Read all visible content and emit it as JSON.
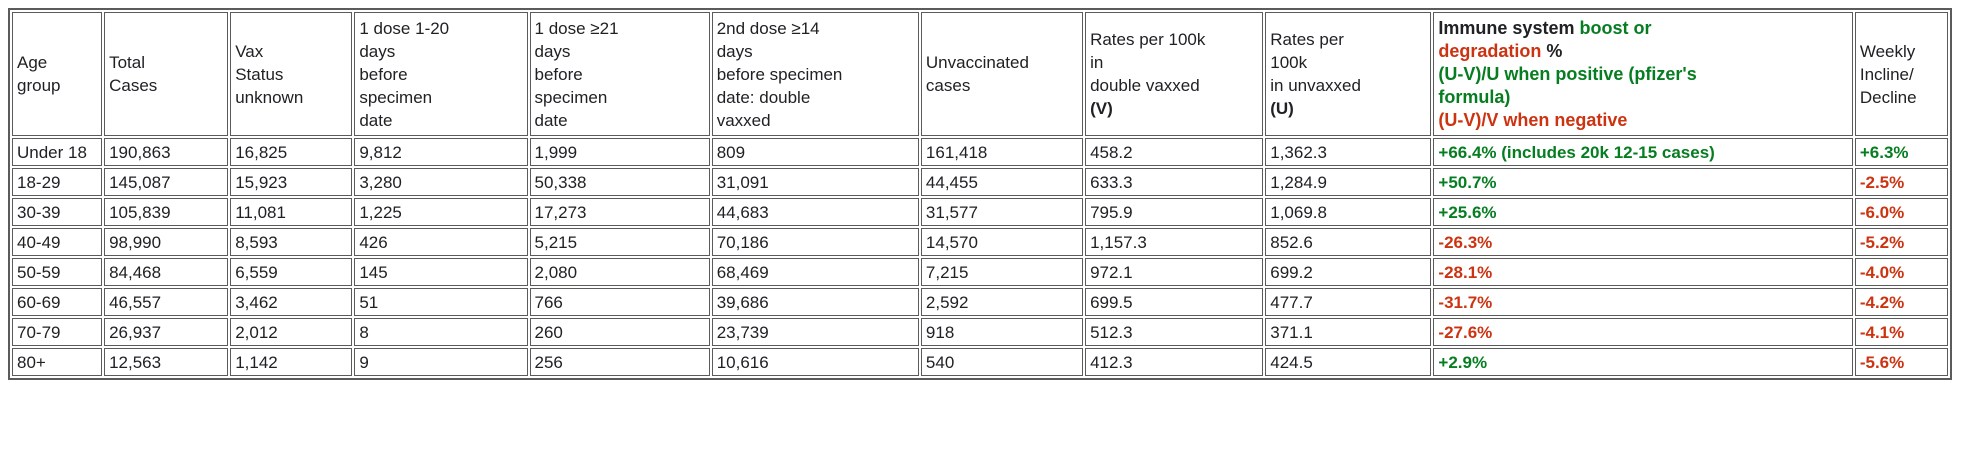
{
  "colors": {
    "green": "#077d21",
    "red": "#cc3311",
    "text": "#202124",
    "border": "#5b5b5b"
  },
  "chart_data": {
    "type": "table",
    "columns": [
      "Age group",
      "Total Cases",
      "Vax Status unknown",
      "1 dose 1-20 days before specimen date",
      "1 dose ≥21 days before specimen date",
      "2nd dose ≥14 days before specimen date: double vaxxed",
      "Unvaccinated cases",
      "Rates per 100k in double vaxxed (V)",
      "Rates per 100k in unvaxxed (U)",
      "Immune system boost or degradation % (U-V)/U when positive (pfizer's formula) (U-V)/V when negative",
      "Weekly Incline/Decline"
    ],
    "rows": [
      [
        "Under 18",
        "190,863",
        "16,825",
        "9,812",
        "1,999",
        "809",
        "161,418",
        "458.2",
        "1,362.3",
        "+66.4% (includes 20k 12-15 cases)",
        "+6.3%"
      ],
      [
        "18-29",
        "145,087",
        "15,923",
        "3,280",
        "50,338",
        "31,091",
        "44,455",
        "633.3",
        "1,284.9",
        "+50.7%",
        "-2.5%"
      ],
      [
        "30-39",
        "105,839",
        "11,081",
        "1,225",
        "17,273",
        "44,683",
        "31,577",
        "795.9",
        "1,069.8",
        "+25.6%",
        "-6.0%"
      ],
      [
        "40-49",
        "98,990",
        "8,593",
        "426",
        "5,215",
        "70,186",
        "14,570",
        "1,157.3",
        "852.6",
        "-26.3%",
        "-5.2%"
      ],
      [
        "50-59",
        "84,468",
        "6,559",
        "145",
        "2,080",
        "68,469",
        "7,215",
        "972.1",
        "699.2",
        "-28.1%",
        "-4.0%"
      ],
      [
        "60-69",
        "46,557",
        "3,462",
        "51",
        "766",
        "39,686",
        "2,592",
        "699.5",
        "477.7",
        "-31.7%",
        "-4.2%"
      ],
      [
        "70-79",
        "26,937",
        "2,012",
        "8",
        "260",
        "23,739",
        "918",
        "512.3",
        "371.1",
        "-27.6%",
        "-4.1%"
      ],
      [
        "80+",
        "12,563",
        "1,142",
        "9",
        "256",
        "10,616",
        "540",
        "412.3",
        "424.5",
        "+2.9%",
        "-5.6%"
      ]
    ]
  },
  "cell_colors": {
    "immune": [
      "green",
      "green",
      "green",
      "red",
      "red",
      "red",
      "red",
      "green"
    ],
    "weekly": [
      "green",
      "red",
      "red",
      "red",
      "red",
      "red",
      "red",
      "red"
    ]
  },
  "header_display": [
    {
      "name": "age-group",
      "segments": [
        {
          "text": "Age\ngroup"
        }
      ]
    },
    {
      "name": "total-cases",
      "segments": [
        {
          "text": "Total\nCases"
        }
      ]
    },
    {
      "name": "vax-status-unknown",
      "segments": [
        {
          "text": "Vax\nStatus\nunknown"
        }
      ]
    },
    {
      "name": "dose1-1-20-days",
      "segments": [
        {
          "text": "1 dose 1-20\ndays\nbefore\nspecimen\ndate"
        }
      ]
    },
    {
      "name": "dose1-ge21-days",
      "segments": [
        {
          "text": "1 dose ≥21\ndays\nbefore\nspecimen\ndate"
        }
      ]
    },
    {
      "name": "dose2-ge14-days",
      "segments": [
        {
          "text": "2nd dose ≥14\ndays\nbefore specimen\ndate: double\nvaxxed"
        }
      ]
    },
    {
      "name": "unvaccinated-cases",
      "segments": [
        {
          "text": "Unvaccinated\ncases"
        }
      ]
    },
    {
      "name": "rates-double-vaxxed",
      "segments": [
        {
          "text": "Rates per 100k\nin\ndouble vaxxed\n"
        },
        {
          "text": "(V)",
          "bold": true
        }
      ]
    },
    {
      "name": "rates-unvaxxed",
      "segments": [
        {
          "text": "Rates per\n100k\nin unvaxxed\n"
        },
        {
          "text": "(U)",
          "bold": true
        }
      ]
    },
    {
      "name": "immune-boost-degradation",
      "bold": true,
      "segments": [
        {
          "text": "Immune system "
        },
        {
          "text": "boost or",
          "color": "green"
        },
        {
          "text": "\n"
        },
        {
          "text": "degradation",
          "color": "red"
        },
        {
          "text": " %"
        },
        {
          "text": "\n"
        },
        {
          "text": "(U-V)/U when positive (pfizer's\nformula)",
          "color": "green"
        },
        {
          "text": "\n"
        },
        {
          "text": "(U-V)/V when negative",
          "color": "red"
        }
      ]
    },
    {
      "name": "weekly-incline-decline",
      "segments": [
        {
          "text": "Weekly\nIncline/\nDecline"
        }
      ]
    }
  ]
}
